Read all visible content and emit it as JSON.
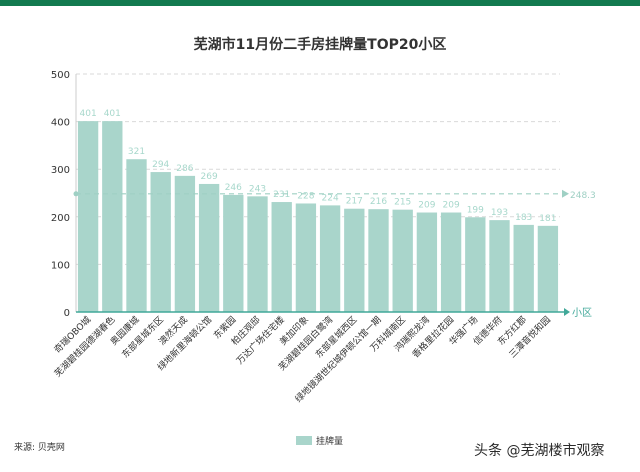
{
  "title": "芜湖市11月份二手房挂牌量TOP20小区",
  "source": "来源: 贝壳网",
  "watermark": "头条 @芜湖楼市观察",
  "colors": {
    "top_bar": "#127a4f",
    "bar": "#a9d5cb",
    "avg_line": "#9fd0c4",
    "axis": "#41a899",
    "grid": "#d9d9d9"
  },
  "chart_data": {
    "type": "bar",
    "title": "芜湖市11月份二手房挂牌量TOP20小区",
    "xlabel": "小区",
    "ylabel": "",
    "ylim": [
      0,
      500
    ],
    "yticks": [
      0,
      100,
      200,
      300,
      400,
      500
    ],
    "grid": true,
    "legend": "bottom",
    "categories": [
      "奇瑞OBO城",
      "芜湖碧桂园德湖春色",
      "奥园康城",
      "东部星城东区",
      "澳然天成",
      "绿地新里海顿公馆",
      "东紫园",
      "柏庄观邸",
      "万达广场住宅楼",
      "美加印象",
      "芜湖碧桂园白鹭湾",
      "东部星城西区",
      "绿地镜湖世纪城伊顿公馆一期",
      "万科城南区",
      "鸿瑞熙龙湾",
      "香格里拉花园",
      "华强广场",
      "信德华府",
      "东方红郡",
      "三潭音悦和园"
    ],
    "series": [
      {
        "name": "挂牌量",
        "values": [
          401,
          401,
          321,
          294,
          286,
          269,
          246,
          243,
          231,
          228,
          224,
          217,
          216,
          215,
          209,
          209,
          199,
          193,
          183,
          181
        ]
      }
    ],
    "average": {
      "value": 248.3,
      "label": "248.3"
    }
  }
}
